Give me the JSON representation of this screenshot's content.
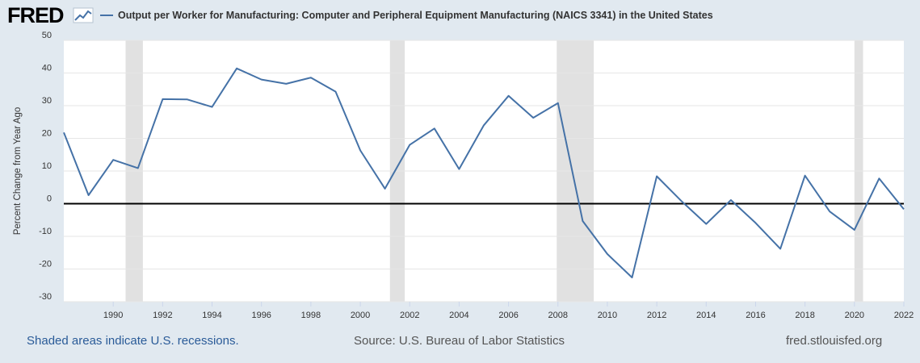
{
  "header": {
    "logo_text": "FRED",
    "logo_icon": "chart-line-icon",
    "series_title": "Output per Worker for Manufacturing: Computer and Peripheral Equipment Manufacturing (NAICS 3341) in the United States"
  },
  "footer": {
    "recessions_note": "Shaded areas indicate U.S. recessions.",
    "source": "Source: U.S. Bureau of Labor Statistics",
    "site": "fred.stlouisfed.org"
  },
  "colors": {
    "series": "#4572a7",
    "background": "#e1e9f0",
    "plot": "#ffffff",
    "recession": "#e1e1e1",
    "zero_line": "#000000",
    "footer_link": "#2a5b98"
  },
  "chart_data": {
    "type": "line",
    "title": "",
    "xlabel": "",
    "ylabel": "Percent Change from Year Ago",
    "xlim": [
      1988,
      2022
    ],
    "ylim": [
      -30,
      50
    ],
    "grid": true,
    "y_ticks": [
      50,
      40,
      30,
      20,
      10,
      0,
      -10,
      -20,
      -30
    ],
    "x_ticks": [
      1990,
      1992,
      1994,
      1996,
      1998,
      2000,
      2002,
      2004,
      2006,
      2008,
      2010,
      2012,
      2014,
      2016,
      2018,
      2020,
      2022
    ],
    "recessions": [
      [
        1990.5,
        1991.2
      ],
      [
        2001.2,
        2001.8
      ],
      [
        2007.95,
        2009.45
      ],
      [
        2020.0,
        2020.35
      ]
    ],
    "series": [
      {
        "name": "Output per Worker for Manufacturing: Computer and Peripheral Equipment Manufacturing (NAICS 3341) in the United States",
        "x": [
          1988,
          1989,
          1990,
          1991,
          1992,
          1993,
          1994,
          1995,
          1996,
          1997,
          1998,
          1999,
          2000,
          2001,
          2002,
          2003,
          2004,
          2005,
          2006,
          2007,
          2008,
          2009,
          2010,
          2011,
          2012,
          2013,
          2014,
          2015,
          2016,
          2017,
          2018,
          2019,
          2020,
          2021,
          2022
        ],
        "values": [
          21.8,
          2.6,
          13.4,
          10.9,
          32.0,
          31.9,
          29.6,
          41.4,
          38.0,
          36.7,
          38.6,
          34.3,
          16.3,
          4.6,
          18.0,
          23.0,
          10.6,
          24.0,
          33.0,
          26.3,
          30.8,
          -5.3,
          -15.4,
          -22.6,
          8.4,
          0.8,
          -6.2,
          1.1,
          -5.9,
          -13.8,
          8.6,
          -2.4,
          -8.0,
          7.7,
          -1.7
        ]
      }
    ]
  }
}
